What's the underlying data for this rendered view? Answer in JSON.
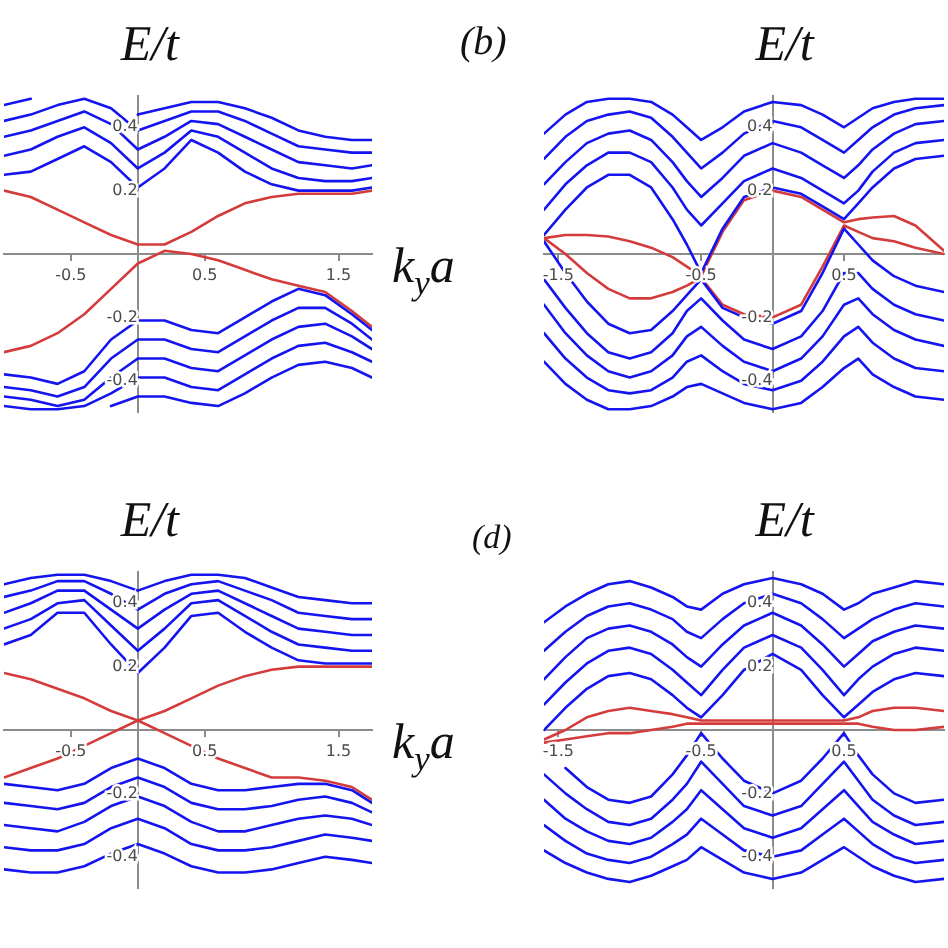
{
  "chart_data": [
    {
      "type": "line",
      "ylabel": "E/t",
      "xlabel": "k$_{y}$a",
      "marker": "none",
      "x": [
        -1,
        -0.8,
        -0.6,
        -0.4,
        -0.2,
        0,
        0.2,
        0.4,
        0.6,
        0.8,
        1,
        1.2,
        1.4,
        1.6,
        1.75
      ],
      "xlim": [
        -1,
        1.75
      ],
      "ylim": [
        -0.5,
        0.5
      ],
      "xticks": [
        -0.5,
        0.5,
        1.5
      ],
      "yticks": [
        -0.4,
        -0.2,
        0.2,
        0.4
      ],
      "series": [
        {
          "color": "#1414f0",
          "values": [
            0.25,
            0.26,
            0.3,
            0.34,
            0.29,
            0.21,
            0.27,
            0.36,
            0.32,
            0.26,
            0.22,
            0.2,
            0.2,
            0.2,
            0.21
          ]
        },
        {
          "color": "#1414f0",
          "values": [
            0.31,
            0.33,
            0.37,
            0.4,
            0.35,
            0.27,
            0.32,
            0.39,
            0.37,
            0.32,
            0.27,
            0.24,
            0.23,
            0.23,
            0.24
          ]
        },
        {
          "color": "#1414f0",
          "values": [
            0.37,
            0.39,
            0.42,
            0.45,
            0.41,
            0.33,
            0.37,
            0.42,
            0.41,
            0.37,
            0.33,
            0.29,
            0.28,
            0.27,
            0.28
          ]
        },
        {
          "color": "#1414f0",
          "values": [
            0.42,
            0.44,
            0.47,
            0.49,
            0.46,
            0.39,
            0.42,
            0.45,
            0.45,
            0.42,
            0.38,
            0.34,
            0.33,
            0.32,
            0.32
          ]
        },
        {
          "color": "#1414f0",
          "values": [
            0.47,
            0.49,
            null,
            null,
            null,
            0.44,
            0.46,
            0.48,
            0.48,
            0.46,
            0.43,
            0.39,
            0.37,
            0.36,
            0.36
          ]
        },
        {
          "color": "#1414f0",
          "values": [
            -0.38,
            -0.39,
            -0.41,
            -0.37,
            -0.27,
            -0.21,
            -0.21,
            -0.24,
            -0.25,
            -0.2,
            -0.15,
            -0.11,
            -0.13,
            -0.19,
            -0.24
          ]
        },
        {
          "color": "#1414f0",
          "values": [
            -0.42,
            -0.43,
            -0.45,
            -0.42,
            -0.33,
            -0.27,
            -0.27,
            -0.3,
            -0.31,
            -0.26,
            -0.21,
            -0.17,
            -0.17,
            -0.22,
            -0.27
          ]
        },
        {
          "color": "#1414f0",
          "values": [
            -0.45,
            -0.46,
            -0.48,
            -0.46,
            -0.39,
            -0.33,
            -0.33,
            -0.36,
            -0.37,
            -0.32,
            -0.27,
            -0.23,
            -0.22,
            -0.26,
            -0.3
          ]
        },
        {
          "color": "#1414f0",
          "values": [
            -0.48,
            -0.49,
            -0.49,
            -0.48,
            -0.44,
            -0.39,
            -0.39,
            -0.42,
            -0.43,
            -0.38,
            -0.33,
            -0.29,
            -0.28,
            -0.31,
            -0.34
          ]
        },
        {
          "color": "#1414f0",
          "values": [
            null,
            null,
            null,
            null,
            -0.48,
            -0.45,
            -0.45,
            -0.47,
            -0.48,
            -0.44,
            -0.39,
            -0.35,
            -0.34,
            -0.36,
            -0.39
          ]
        },
        {
          "color": "#d43c3c",
          "values": [
            0.2,
            0.18,
            0.14,
            0.1,
            0.06,
            0.03,
            0.03,
            0.07,
            0.12,
            0.16,
            0.18,
            0.19,
            0.19,
            0.19,
            0.2
          ]
        },
        {
          "color": "#d43c3c",
          "values": [
            -0.31,
            -0.29,
            -0.25,
            -0.19,
            -0.11,
            -0.03,
            0.01,
            0.0,
            -0.02,
            -0.05,
            -0.08,
            -0.1,
            -0.12,
            -0.18,
            -0.23
          ]
        }
      ]
    },
    {
      "type": "line",
      "ylabel": "E/t",
      "annotations": [
        "(b)"
      ],
      "marker": "none",
      "x": [
        -1.6,
        -1.45,
        -1.3,
        -1.15,
        -1.0,
        -0.85,
        -0.7,
        -0.6,
        -0.5,
        -0.35,
        -0.2,
        0,
        0.2,
        0.35,
        0.5,
        0.6,
        0.7,
        0.85,
        1.0,
        1.2
      ],
      "xlim": [
        -1.6,
        1.2
      ],
      "ylim": [
        -0.5,
        0.5
      ],
      "xticks": [
        -1.5,
        -0.5,
        0.5
      ],
      "yticks": [
        -0.4,
        -0.2,
        0.2,
        0.4
      ],
      "series": [
        {
          "color": "#1414f0",
          "values": [
            0.06,
            0.14,
            0.21,
            0.25,
            0.25,
            0.21,
            0.11,
            0.03,
            -0.06,
            0.08,
            0.18,
            0.21,
            0.19,
            0.15,
            0.11,
            0.16,
            0.21,
            0.27,
            0.3,
            0.31
          ]
        },
        {
          "color": "#1414f0",
          "values": [
            0.14,
            0.22,
            0.28,
            0.32,
            0.32,
            0.29,
            0.21,
            0.14,
            0.09,
            0.16,
            0.23,
            0.27,
            0.24,
            0.2,
            0.16,
            0.2,
            0.26,
            0.32,
            0.35,
            0.36
          ]
        },
        {
          "color": "#1414f0",
          "values": [
            0.22,
            0.29,
            0.35,
            0.38,
            0.39,
            0.36,
            0.29,
            0.23,
            0.18,
            0.24,
            0.31,
            0.35,
            0.32,
            0.28,
            0.24,
            0.28,
            0.33,
            0.38,
            0.41,
            0.42
          ]
        },
        {
          "color": "#1414f0",
          "values": [
            0.3,
            0.37,
            0.42,
            0.44,
            0.45,
            0.43,
            0.37,
            0.32,
            0.27,
            0.32,
            0.38,
            0.42,
            0.4,
            0.36,
            0.32,
            0.36,
            0.4,
            0.44,
            0.46,
            0.47
          ]
        },
        {
          "color": "#1414f0",
          "values": [
            0.38,
            0.44,
            0.48,
            0.49,
            0.49,
            0.48,
            0.44,
            0.4,
            0.36,
            0.4,
            0.45,
            0.48,
            0.47,
            0.44,
            0.4,
            0.43,
            0.46,
            0.48,
            0.49,
            0.49
          ]
        },
        {
          "color": "#1414f0",
          "values": [
            0.04,
            -0.06,
            -0.15,
            -0.22,
            -0.25,
            -0.24,
            -0.18,
            -0.13,
            -0.08,
            -0.17,
            -0.2,
            -0.22,
            -0.18,
            -0.06,
            0.08,
            0.03,
            -0.02,
            -0.07,
            -0.1,
            -0.12
          ]
        },
        {
          "color": "#1414f0",
          "values": [
            -0.08,
            -0.17,
            -0.25,
            -0.31,
            -0.33,
            -0.31,
            -0.25,
            -0.18,
            -0.14,
            -0.21,
            -0.27,
            -0.3,
            -0.26,
            -0.18,
            -0.06,
            -0.06,
            -0.11,
            -0.16,
            -0.19,
            -0.21
          ]
        },
        {
          "color": "#1414f0",
          "values": [
            -0.16,
            -0.25,
            -0.32,
            -0.37,
            -0.39,
            -0.37,
            -0.32,
            -0.26,
            -0.23,
            -0.29,
            -0.34,
            -0.37,
            -0.33,
            -0.26,
            -0.16,
            -0.14,
            -0.19,
            -0.24,
            -0.27,
            -0.29
          ]
        },
        {
          "color": "#1414f0",
          "values": [
            -0.25,
            -0.33,
            -0.39,
            -0.43,
            -0.44,
            -0.43,
            -0.39,
            -0.34,
            -0.32,
            -0.37,
            -0.41,
            -0.43,
            -0.4,
            -0.34,
            -0.26,
            -0.23,
            -0.28,
            -0.33,
            -0.36,
            -0.37
          ]
        },
        {
          "color": "#1414f0",
          "values": [
            -0.34,
            -0.41,
            -0.46,
            -0.49,
            -0.49,
            -0.48,
            -0.45,
            -0.42,
            -0.41,
            -0.44,
            -0.47,
            -0.49,
            -0.47,
            -0.42,
            -0.36,
            -0.33,
            -0.38,
            -0.42,
            -0.45,
            -0.46
          ]
        },
        {
          "color": "#d43c3c",
          "values": [
            0.05,
            0.06,
            0.06,
            0.055,
            0.04,
            0.02,
            -0.01,
            -0.04,
            -0.07,
            0.07,
            0.17,
            0.2,
            0.18,
            0.14,
            0.1,
            0.11,
            0.115,
            0.12,
            0.09,
            0.01
          ]
        },
        {
          "color": "#d43c3c",
          "values": [
            0.05,
            0.0,
            -0.06,
            -0.11,
            -0.14,
            -0.14,
            -0.12,
            -0.1,
            -0.075,
            -0.16,
            -0.19,
            -0.2,
            -0.16,
            -0.04,
            0.09,
            0.07,
            0.05,
            0.04,
            0.02,
            0.0
          ]
        }
      ]
    },
    {
      "type": "line",
      "ylabel": "E/t",
      "xlabel": "k$_{y}$a",
      "marker": "none",
      "x": [
        -1,
        -0.8,
        -0.6,
        -0.4,
        -0.2,
        0,
        0.2,
        0.4,
        0.6,
        0.8,
        1,
        1.2,
        1.4,
        1.6,
        1.75
      ],
      "xlim": [
        -1,
        1.75
      ],
      "ylim": [
        -0.5,
        0.5
      ],
      "xticks": [
        -0.5,
        0.5,
        1.5
      ],
      "yticks": [
        -0.4,
        -0.2,
        0.2,
        0.4
      ],
      "series": [
        {
          "color": "#1414f0",
          "values": [
            0.27,
            0.3,
            0.37,
            0.37,
            0.27,
            0.18,
            0.26,
            0.36,
            0.37,
            0.31,
            0.26,
            0.22,
            0.21,
            0.21,
            0.21
          ]
        },
        {
          "color": "#1414f0",
          "values": [
            0.32,
            0.35,
            0.4,
            0.41,
            0.33,
            0.25,
            0.32,
            0.4,
            0.41,
            0.36,
            0.31,
            0.27,
            0.26,
            0.25,
            0.25
          ]
        },
        {
          "color": "#1414f0",
          "values": [
            0.37,
            0.4,
            0.44,
            0.44,
            0.38,
            0.32,
            0.38,
            0.43,
            0.44,
            0.4,
            0.36,
            0.32,
            0.31,
            0.3,
            0.3
          ]
        },
        {
          "color": "#1414f0",
          "values": [
            0.42,
            0.44,
            0.47,
            0.47,
            0.43,
            0.38,
            0.43,
            0.46,
            0.47,
            0.44,
            0.41,
            0.37,
            0.36,
            0.35,
            0.35
          ]
        },
        {
          "color": "#1414f0",
          "values": [
            0.46,
            0.48,
            0.49,
            0.49,
            0.47,
            0.44,
            0.47,
            0.49,
            0.49,
            0.48,
            0.45,
            0.42,
            0.41,
            0.4,
            0.4
          ]
        },
        {
          "color": "#1414f0",
          "values": [
            -0.17,
            -0.18,
            -0.19,
            -0.17,
            -0.12,
            -0.09,
            -0.12,
            -0.17,
            -0.19,
            -0.19,
            -0.18,
            -0.17,
            -0.17,
            -0.19,
            -0.23
          ]
        },
        {
          "color": "#1414f0",
          "values": [
            -0.23,
            -0.24,
            -0.25,
            -0.23,
            -0.18,
            -0.15,
            -0.18,
            -0.23,
            -0.25,
            -0.25,
            -0.24,
            -0.22,
            -0.21,
            -0.23,
            -0.26
          ]
        },
        {
          "color": "#1414f0",
          "values": [
            -0.3,
            -0.31,
            -0.32,
            -0.29,
            -0.24,
            -0.21,
            -0.24,
            -0.29,
            -0.32,
            -0.32,
            -0.3,
            -0.28,
            -0.27,
            -0.28,
            -0.3
          ]
        },
        {
          "color": "#1414f0",
          "values": [
            -0.37,
            -0.38,
            -0.38,
            -0.36,
            -0.31,
            -0.28,
            -0.31,
            -0.36,
            -0.38,
            -0.38,
            -0.37,
            -0.35,
            -0.33,
            -0.34,
            -0.35
          ]
        },
        {
          "color": "#1414f0",
          "values": [
            -0.44,
            -0.45,
            -0.45,
            -0.43,
            -0.39,
            -0.36,
            -0.39,
            -0.43,
            -0.45,
            -0.45,
            -0.44,
            -0.42,
            -0.4,
            -0.41,
            -0.42
          ]
        },
        {
          "color": "#d43c3c",
          "values": [
            0.18,
            0.16,
            0.13,
            0.1,
            0.06,
            0.03,
            -0.01,
            -0.05,
            -0.09,
            -0.12,
            -0.15,
            -0.15,
            -0.16,
            -0.18,
            -0.22
          ]
        },
        {
          "color": "#d43c3c",
          "values": [
            -0.15,
            -0.12,
            -0.09,
            -0.05,
            -0.01,
            0.03,
            0.06,
            0.1,
            0.14,
            0.17,
            0.19,
            0.2,
            0.2,
            0.2,
            0.2
          ]
        }
      ]
    },
    {
      "type": "line",
      "ylabel": "E/t",
      "annotations": [
        "(d)"
      ],
      "marker": "none",
      "x": [
        -1.6,
        -1.45,
        -1.3,
        -1.15,
        -1.0,
        -0.85,
        -0.7,
        -0.6,
        -0.5,
        -0.35,
        -0.2,
        0,
        0.2,
        0.35,
        0.5,
        0.6,
        0.7,
        0.85,
        1.0,
        1.2
      ],
      "xlim": [
        -1.6,
        1.2
      ],
      "ylim": [
        -0.5,
        0.5
      ],
      "xticks": [
        -1.5,
        -0.5,
        0.5
      ],
      "yticks": [
        -0.4,
        -0.2,
        0.2,
        0.4
      ],
      "series": [
        {
          "color": "#1414f0",
          "values": [
            0.0,
            0.07,
            0.13,
            0.17,
            0.18,
            0.16,
            0.11,
            0.07,
            0.04,
            0.11,
            0.19,
            0.24,
            0.19,
            0.11,
            0.04,
            0.08,
            0.12,
            0.16,
            0.18,
            0.17
          ]
        },
        {
          "color": "#1414f0",
          "values": [
            0.08,
            0.15,
            0.21,
            0.25,
            0.26,
            0.24,
            0.19,
            0.15,
            0.11,
            0.19,
            0.26,
            0.3,
            0.26,
            0.19,
            0.11,
            0.16,
            0.2,
            0.24,
            0.26,
            0.25
          ]
        },
        {
          "color": "#1414f0",
          "values": [
            0.16,
            0.23,
            0.29,
            0.32,
            0.33,
            0.31,
            0.27,
            0.23,
            0.2,
            0.27,
            0.33,
            0.37,
            0.33,
            0.27,
            0.2,
            0.24,
            0.28,
            0.31,
            0.33,
            0.32
          ]
        },
        {
          "color": "#1414f0",
          "values": [
            0.25,
            0.31,
            0.36,
            0.39,
            0.4,
            0.38,
            0.35,
            0.31,
            0.29,
            0.35,
            0.4,
            0.43,
            0.4,
            0.35,
            0.29,
            0.32,
            0.35,
            0.38,
            0.4,
            0.39
          ]
        },
        {
          "color": "#1414f0",
          "values": [
            0.34,
            0.39,
            0.43,
            0.46,
            0.47,
            0.45,
            0.42,
            0.39,
            0.38,
            0.43,
            0.46,
            0.48,
            0.46,
            0.43,
            0.38,
            0.4,
            0.43,
            0.45,
            0.47,
            0.46
          ]
        },
        {
          "color": "#1414f0",
          "values": [
            null,
            -0.12,
            -0.18,
            -0.22,
            -0.23,
            -0.21,
            -0.14,
            -0.08,
            -0.01,
            -0.09,
            -0.16,
            -0.2,
            -0.16,
            -0.09,
            -0.01,
            -0.08,
            -0.14,
            -0.2,
            -0.23,
            -0.22
          ]
        },
        {
          "color": "#1414f0",
          "values": [
            -0.14,
            -0.2,
            -0.25,
            -0.29,
            -0.3,
            -0.28,
            -0.22,
            -0.17,
            -0.1,
            -0.17,
            -0.24,
            -0.27,
            -0.24,
            -0.17,
            -0.1,
            -0.16,
            -0.22,
            -0.27,
            -0.3,
            -0.29
          ]
        },
        {
          "color": "#1414f0",
          "values": [
            -0.22,
            -0.28,
            -0.32,
            -0.35,
            -0.36,
            -0.34,
            -0.29,
            -0.25,
            -0.19,
            -0.25,
            -0.31,
            -0.34,
            -0.31,
            -0.25,
            -0.19,
            -0.24,
            -0.29,
            -0.33,
            -0.36,
            -0.35
          ]
        },
        {
          "color": "#1414f0",
          "values": [
            -0.3,
            -0.35,
            -0.39,
            -0.41,
            -0.42,
            -0.4,
            -0.36,
            -0.33,
            -0.28,
            -0.33,
            -0.38,
            -0.4,
            -0.38,
            -0.33,
            -0.28,
            -0.32,
            -0.36,
            -0.4,
            -0.42,
            -0.41
          ]
        },
        {
          "color": "#1414f0",
          "values": [
            -0.38,
            -0.42,
            -0.45,
            -0.47,
            -0.48,
            -0.46,
            -0.43,
            -0.41,
            -0.37,
            -0.41,
            -0.45,
            -0.47,
            -0.45,
            -0.41,
            -0.37,
            -0.4,
            -0.43,
            -0.46,
            -0.48,
            -0.47
          ]
        },
        {
          "color": "#d43c3c",
          "values": [
            -0.03,
            0.0,
            0.04,
            0.06,
            0.07,
            0.06,
            0.05,
            0.04,
            0.03,
            0.03,
            0.03,
            0.03,
            0.03,
            0.03,
            0.03,
            0.04,
            0.06,
            0.07,
            0.07,
            0.06
          ]
        },
        {
          "color": "#d43c3c",
          "values": [
            -0.04,
            -0.03,
            -0.02,
            -0.01,
            -0.01,
            0.0,
            0.01,
            0.02,
            0.02,
            0.02,
            0.02,
            0.02,
            0.02,
            0.02,
            0.02,
            0.02,
            0.01,
            0.0,
            0.0,
            0.01
          ]
        }
      ]
    }
  ]
}
